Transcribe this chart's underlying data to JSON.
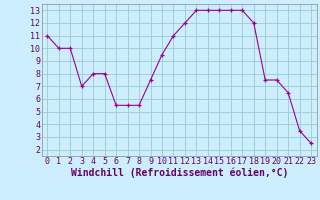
{
  "x": [
    0,
    1,
    2,
    3,
    4,
    5,
    6,
    7,
    8,
    9,
    10,
    11,
    12,
    13,
    14,
    15,
    16,
    17,
    18,
    19,
    20,
    21,
    22,
    23
  ],
  "y": [
    11,
    10,
    10,
    7,
    8,
    8,
    5.5,
    5.5,
    5.5,
    7.5,
    9.5,
    11,
    12,
    13,
    13,
    13,
    13,
    13,
    12,
    7.5,
    7.5,
    6.5,
    3.5,
    2.5
  ],
  "line_color": "#990099",
  "marker_color": "#990099",
  "bg_color": "#cceeff",
  "grid_color": "#99cccc",
  "xlabel": "Windchill (Refroidissement éolien,°C)",
  "xlim": [
    -0.5,
    23.5
  ],
  "ylim": [
    1.5,
    13.5
  ],
  "yticks": [
    2,
    3,
    4,
    5,
    6,
    7,
    8,
    9,
    10,
    11,
    12,
    13
  ],
  "xticks": [
    0,
    1,
    2,
    3,
    4,
    5,
    6,
    7,
    8,
    9,
    10,
    11,
    12,
    13,
    14,
    15,
    16,
    17,
    18,
    19,
    20,
    21,
    22,
    23
  ],
  "xtick_labels": [
    "0",
    "1",
    "2",
    "3",
    "4",
    "5",
    "6",
    "7",
    "8",
    "9",
    "10",
    "11",
    "12",
    "13",
    "14",
    "15",
    "16",
    "17",
    "18",
    "19",
    "20",
    "21",
    "22",
    "23"
  ],
  "xlabel_fontsize": 7,
  "tick_fontsize": 6
}
